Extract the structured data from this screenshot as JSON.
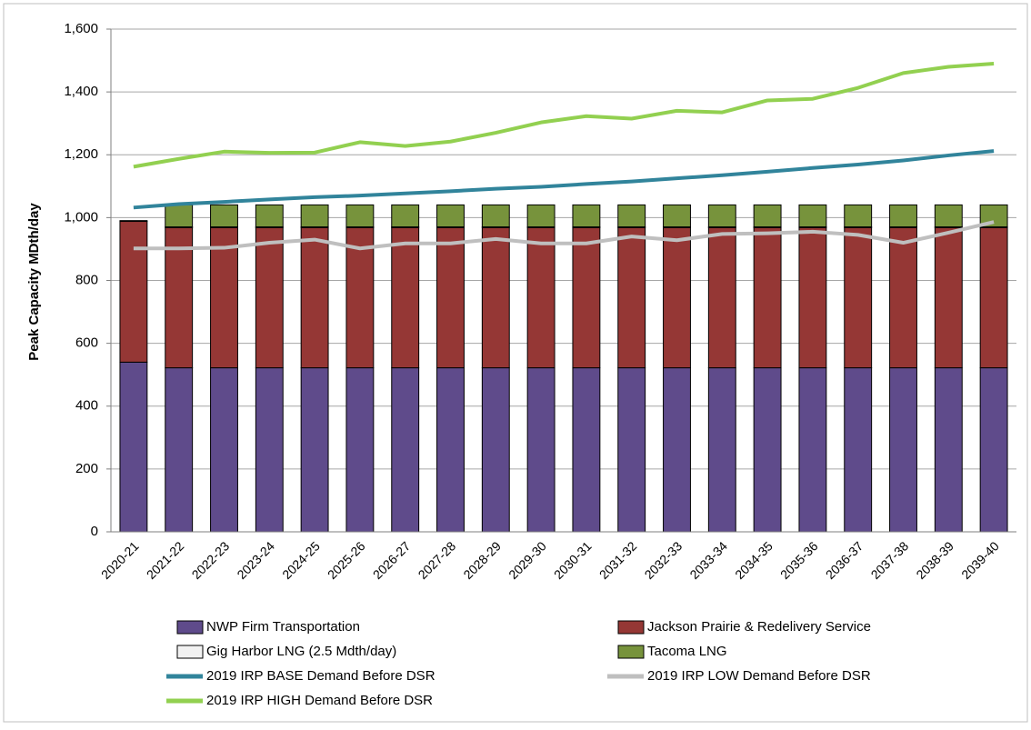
{
  "chart_data": {
    "type": "bar",
    "stacked": true,
    "ylabel": "Peak Capacity  MDth/day",
    "categories": [
      "2020-21",
      "2021-22",
      "2022-23",
      "2023-24",
      "2024-25",
      "2025-26",
      "2026-27",
      "2027-28",
      "2028-29",
      "2029-30",
      "2030-31",
      "2031-32",
      "2032-33",
      "2033-34",
      "2034-35",
      "2035-36",
      "2036-37",
      "2037-38",
      "2038-39",
      "2039-40"
    ],
    "ylim": [
      0,
      1600
    ],
    "yticks": [
      0,
      200,
      400,
      600,
      800,
      {
        "value": 1000,
        "label": "1,000"
      },
      {
        "value": 1200,
        "label": "1,200"
      },
      {
        "value": 1400,
        "label": "1,400"
      },
      {
        "value": 1600,
        "label": "1,600"
      }
    ],
    "grid": true,
    "series": [
      {
        "name": "NWP Firm Transportation",
        "type": "bar",
        "color": "#5f4b8b",
        "values": [
          540,
          522,
          522,
          522,
          522,
          522,
          522,
          522,
          522,
          522,
          522,
          522,
          522,
          522,
          522,
          522,
          522,
          522,
          522,
          522
        ]
      },
      {
        "name": "Jackson Prairie & Redelivery Service",
        "type": "bar",
        "color": "#953735",
        "values": [
          448,
          446,
          446,
          446,
          446,
          446,
          446,
          446,
          446,
          446,
          446,
          446,
          446,
          446,
          446,
          446,
          446,
          446,
          446,
          446
        ]
      },
      {
        "name": "Gig Harbor LNG (2.5 Mdth/day)",
        "type": "bar",
        "color": "#f2f2f2",
        "values": [
          2.5,
          2.5,
          2.5,
          2.5,
          2.5,
          2.5,
          2.5,
          2.5,
          2.5,
          2.5,
          2.5,
          2.5,
          2.5,
          2.5,
          2.5,
          2.5,
          2.5,
          2.5,
          2.5,
          2.5
        ]
      },
      {
        "name": "Tacoma LNG",
        "type": "bar",
        "color": "#77933c",
        "values": [
          0,
          70,
          70,
          70,
          70,
          70,
          70,
          70,
          70,
          70,
          70,
          70,
          70,
          70,
          70,
          70,
          70,
          70,
          70,
          70
        ]
      },
      {
        "name": "2019 IRP BASE Demand Before DSR",
        "type": "line",
        "color": "#31849b",
        "values": [
          1032,
          1043,
          1050,
          1058,
          1065,
          1070,
          1077,
          1084,
          1092,
          1098,
          1107,
          1115,
          1125,
          1135,
          1146,
          1158,
          1169,
          1182,
          1198,
          1212
        ]
      },
      {
        "name": "2019 IRP LOW Demand Before DSR",
        "type": "line",
        "color": "#bfbfbf",
        "values": [
          902,
          902,
          904,
          920,
          930,
          902,
          918,
          918,
          932,
          918,
          918,
          940,
          928,
          948,
          950,
          955,
          945,
          920,
          952,
          986
        ]
      },
      {
        "name": "2019 IRP HIGH Demand Before DSR",
        "type": "line",
        "color": "#92d050",
        "values": [
          1162,
          1187,
          1210,
          1206,
          1207,
          1240,
          1228,
          1242,
          1270,
          1303,
          1323,
          1315,
          1340,
          1335,
          1373,
          1378,
          1413,
          1460,
          1480,
          1490
        ]
      }
    ]
  }
}
